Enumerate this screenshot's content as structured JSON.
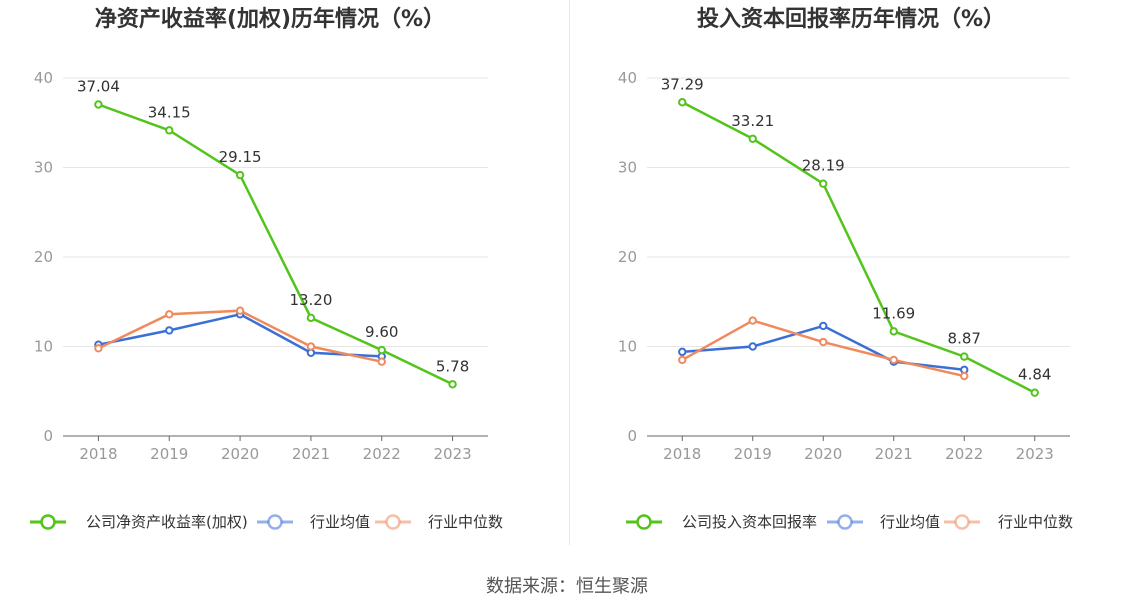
{
  "source": "数据来源：恒生聚源",
  "chart_data": [
    {
      "type": "line",
      "title": "净资产收益率(加权)历年情况（%）",
      "x": [
        "2018",
        "2019",
        "2020",
        "2021",
        "2022",
        "2023"
      ],
      "ylim": [
        0,
        40
      ],
      "yticks": [
        "0",
        "10",
        "20",
        "30",
        "40"
      ],
      "grid": true,
      "legend_position": "bottom",
      "series": [
        {
          "name": "公司净资产收益率(加权)",
          "color": "#52c41a",
          "values": [
            37.04,
            34.15,
            29.15,
            13.2,
            9.6,
            5.78
          ],
          "labels": [
            "37.04",
            "34.15",
            "29.15",
            "13.20",
            "9.60",
            "5.78"
          ]
        },
        {
          "name": "行业均值",
          "color": "#3b6fd8",
          "values": [
            10.2,
            11.8,
            13.6,
            9.3,
            8.9,
            null
          ]
        },
        {
          "name": "行业中位数",
          "color": "#f08a5d",
          "values": [
            9.8,
            13.6,
            14.0,
            10.0,
            8.3,
            null
          ]
        }
      ]
    },
    {
      "type": "line",
      "title": "投入资本回报率历年情况（%）",
      "x": [
        "2018",
        "2019",
        "2020",
        "2021",
        "2022",
        "2023"
      ],
      "ylim": [
        0,
        40
      ],
      "yticks": [
        "0",
        "10",
        "20",
        "30",
        "40"
      ],
      "grid": true,
      "legend_position": "bottom",
      "series": [
        {
          "name": "公司投入资本回报率",
          "color": "#52c41a",
          "values": [
            37.29,
            33.21,
            28.19,
            11.69,
            8.87,
            4.84
          ],
          "labels": [
            "37.29",
            "33.21",
            "28.19",
            "11.69",
            "8.87",
            "4.84"
          ]
        },
        {
          "name": "行业均值",
          "color": "#3b6fd8",
          "values": [
            9.4,
            10.0,
            12.3,
            8.3,
            7.4,
            null
          ]
        },
        {
          "name": "行业中位数",
          "color": "#f08a5d",
          "values": [
            8.5,
            12.9,
            10.5,
            8.5,
            6.7,
            null
          ]
        }
      ]
    }
  ]
}
